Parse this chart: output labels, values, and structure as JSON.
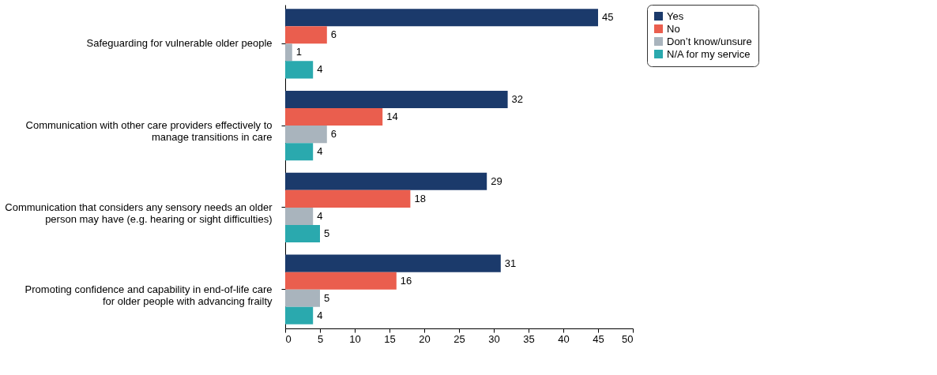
{
  "chart_data": {
    "type": "bar",
    "orientation": "horizontal",
    "categories": [
      "Safeguarding  for vulnerable older people",
      "Communication with other care providers effectively to manage transitions in care",
      "Communication that considers any sensory needs an older person may have (e.g. hearing or sight difficulties)",
      "Promoting confidence and capability in end-of-life care for older people with advancing frailty"
    ],
    "series": [
      {
        "name": "Yes",
        "color": "#1b3a6b",
        "values": [
          45,
          32,
          29,
          31
        ]
      },
      {
        "name": "No",
        "color": "#ea5e4e",
        "values": [
          6,
          14,
          18,
          16
        ]
      },
      {
        "name": "Don’t know/unsure",
        "color": "#a9b4bd",
        "values": [
          1,
          6,
          4,
          5
        ]
      },
      {
        "name": "N/A for my service",
        "color": "#2aa9ae",
        "values": [
          4,
          4,
          5,
          4
        ]
      }
    ],
    "xlim": [
      0,
      50
    ],
    "xticks": [
      0,
      5,
      10,
      15,
      20,
      25,
      30,
      35,
      40,
      45,
      50
    ],
    "data_labels": true,
    "grid": false,
    "legend": "right"
  }
}
